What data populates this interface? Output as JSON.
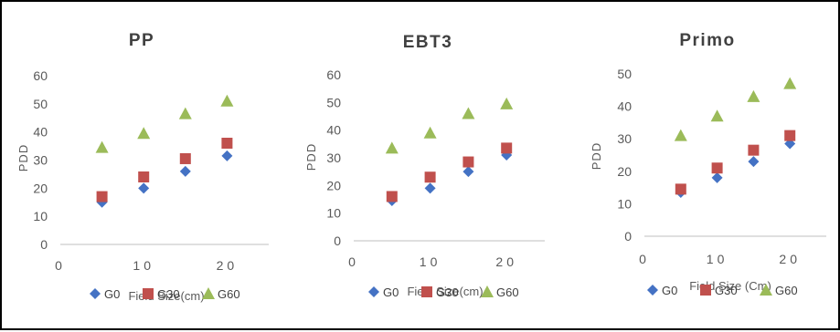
{
  "chart_data": [
    {
      "type": "scatter",
      "title": "PP",
      "xlabel": "Field Size(cm)",
      "ylabel": "PDD",
      "xlim": [
        0,
        25
      ],
      "ylim": [
        0,
        60
      ],
      "xticks": [
        "0",
        "10",
        "20"
      ],
      "yticks": [
        "0",
        "10",
        "20",
        "30",
        "40",
        "50",
        "60"
      ],
      "grid": false,
      "legend_position": "bottom",
      "x": [
        5,
        10,
        15,
        20
      ],
      "series": [
        {
          "name": "G0",
          "marker": "diamond",
          "color": "#4472C4",
          "values": [
            15,
            20,
            26,
            31.5
          ]
        },
        {
          "name": "G30",
          "marker": "square",
          "color": "#C0504D",
          "values": [
            17,
            24,
            30.5,
            36
          ]
        },
        {
          "name": "G60",
          "marker": "triangle",
          "color": "#9BBB59",
          "values": [
            34.5,
            39.5,
            46.5,
            51
          ]
        }
      ]
    },
    {
      "type": "scatter",
      "title": "EBT3",
      "xlabel": "Field Size(cm)",
      "ylabel": "PDD",
      "xlim": [
        0,
        25
      ],
      "ylim": [
        0,
        60
      ],
      "xticks": [
        "0",
        "10",
        "20"
      ],
      "yticks": [
        "0",
        "10",
        "20",
        "30",
        "40",
        "50",
        "60"
      ],
      "grid": false,
      "legend_position": "bottom",
      "x": [
        5,
        10,
        15,
        20
      ],
      "series": [
        {
          "name": "G0",
          "marker": "diamond",
          "color": "#4472C4",
          "values": [
            14.5,
            19,
            25,
            31
          ]
        },
        {
          "name": "G30",
          "marker": "square",
          "color": "#C0504D",
          "values": [
            16,
            23,
            28.5,
            33.5
          ]
        },
        {
          "name": "G60",
          "marker": "triangle",
          "color": "#9BBB59",
          "values": [
            33.5,
            39,
            46,
            49.5
          ]
        }
      ]
    },
    {
      "type": "scatter",
      "title": "Primo",
      "xlabel": "Field Size (Cm)",
      "ylabel": "PDD",
      "xlim": [
        0,
        25
      ],
      "ylim": [
        0,
        50
      ],
      "xticks": [
        "0",
        "10",
        "20"
      ],
      "yticks": [
        "0",
        "10",
        "20",
        "30",
        "40",
        "50"
      ],
      "grid": false,
      "legend_position": "bottom",
      "x": [
        5,
        10,
        15,
        20
      ],
      "series": [
        {
          "name": "G0",
          "marker": "diamond",
          "color": "#4472C4",
          "values": [
            13.5,
            18,
            23,
            28.5
          ]
        },
        {
          "name": "G30",
          "marker": "square",
          "color": "#C0504D",
          "values": [
            14.5,
            21,
            26.5,
            31
          ]
        },
        {
          "name": "G60",
          "marker": "triangle",
          "color": "#9BBB59",
          "values": [
            31,
            37,
            43,
            47
          ]
        }
      ]
    }
  ]
}
